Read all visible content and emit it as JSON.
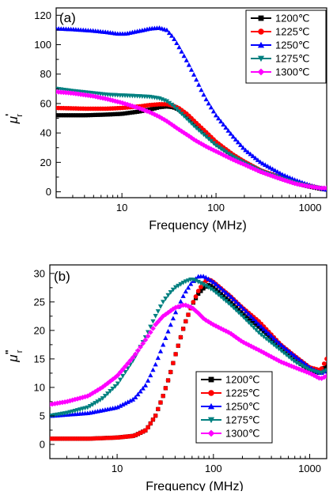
{
  "chart_data": [
    {
      "type": "scatter",
      "panel_label": "(a)",
      "xlabel": "Frequency (MHz)",
      "ylabel": {
        "base": "μ",
        "prime": "'",
        "sub": "r"
      },
      "x_scale": "log",
      "xlim": [
        2,
        1500
      ],
      "ylim": [
        -4,
        125
      ],
      "x_ticks": [
        10,
        100,
        1000
      ],
      "x_tick_labels": [
        "10",
        "100",
        "1000"
      ],
      "y_ticks": [
        0,
        20,
        40,
        60,
        80,
        100,
        120
      ],
      "y_tick_labels": [
        "0",
        "20",
        "40",
        "60",
        "80",
        "100",
        "120"
      ],
      "legend_position": "top-right",
      "series": [
        {
          "name": "1200℃",
          "color": "#000000",
          "marker": "square",
          "x": [
            2,
            4,
            7,
            10,
            15,
            20,
            25,
            30,
            35,
            40,
            50,
            60,
            80,
            100,
            150,
            200,
            300,
            500,
            700,
            1000,
            1300,
            1500
          ],
          "y": [
            52,
            52,
            52.5,
            53,
            54.5,
            56,
            57.5,
            58,
            57.5,
            56,
            51.5,
            46.5,
            39,
            33,
            25,
            20,
            14,
            9,
            6,
            3.5,
            2,
            1.5
          ]
        },
        {
          "name": "1225℃",
          "color": "#ff0000",
          "marker": "circle",
          "x": [
            2,
            4,
            7,
            10,
            15,
            20,
            25,
            30,
            35,
            40,
            50,
            60,
            80,
            100,
            150,
            200,
            300,
            500,
            700,
            1000,
            1300,
            1500
          ],
          "y": [
            57,
            56.5,
            56.5,
            57,
            58,
            59,
            59.5,
            59.5,
            58.5,
            57,
            52.5,
            47.5,
            40,
            34,
            25.5,
            20.5,
            14.5,
            9.5,
            6.5,
            4,
            2.5,
            2
          ]
        },
        {
          "name": "1250℃",
          "color": "#0000ff",
          "marker": "triangle-up",
          "x": [
            2,
            3,
            5,
            7,
            9,
            11,
            13,
            17,
            20,
            25,
            30,
            35,
            40,
            50,
            60,
            70,
            80,
            100,
            150,
            200,
            300,
            500,
            700,
            1000,
            1300,
            1500
          ],
          "y": [
            111,
            110.5,
            109.5,
            108.5,
            107.5,
            107.5,
            108.5,
            110,
            111,
            111.5,
            110,
            105,
            99,
            88,
            78,
            69,
            62,
            52,
            38,
            29,
            20,
            12,
            8,
            4.5,
            2.5,
            1.5
          ]
        },
        {
          "name": "1275℃",
          "color": "#008080",
          "marker": "triangle-down",
          "x": [
            2,
            3,
            5,
            7,
            10,
            15,
            20,
            25,
            30,
            35,
            40,
            50,
            60,
            80,
            100,
            150,
            200,
            300,
            500,
            700,
            1000,
            1300,
            1500
          ],
          "y": [
            70,
            68.5,
            67,
            66,
            65.5,
            65,
            64.5,
            63.5,
            61.5,
            58.5,
            55,
            49,
            44,
            37,
            31.5,
            24,
            19.5,
            14,
            9,
            6,
            3.5,
            2.5,
            2
          ]
        },
        {
          "name": "1300℃",
          "color": "#ff00ff",
          "marker": "diamond",
          "x": [
            2,
            3,
            5,
            7,
            10,
            15,
            20,
            25,
            30,
            40,
            50,
            60,
            80,
            100,
            150,
            200,
            300,
            500,
            700,
            1000,
            1300,
            1500
          ],
          "y": [
            68,
            67,
            65,
            63,
            60.5,
            57,
            54,
            51,
            48,
            42.5,
            38.5,
            35,
            30.5,
            27.5,
            22,
            18.5,
            13.5,
            8.5,
            5.5,
            3.5,
            2.5,
            2.5
          ]
        }
      ]
    },
    {
      "type": "scatter",
      "panel_label": "(b)",
      "xlabel": "Frequency (MHz)",
      "ylabel": {
        "base": "μ",
        "prime": "\"",
        "sub": "r"
      },
      "x_scale": "log",
      "xlim": [
        2,
        1500
      ],
      "ylim": [
        -2.5,
        31.5
      ],
      "x_ticks": [
        10,
        100,
        1000
      ],
      "x_tick_labels": [
        "10",
        "100",
        "1000"
      ],
      "y_ticks": [
        0,
        5,
        10,
        15,
        20,
        25,
        30
      ],
      "y_tick_labels": [
        "0",
        "5",
        "10",
        "15",
        "20",
        "25",
        "30"
      ],
      "legend_position": "bottom-right",
      "series": [
        {
          "name": "1200℃",
          "color": "#000000",
          "marker": "square",
          "x": [
            2,
            5,
            10,
            15,
            20,
            25,
            30,
            35,
            40,
            50,
            60,
            70,
            80,
            90,
            100,
            150,
            200,
            300,
            500,
            700,
            1000,
            1300,
            1500
          ],
          "y": [
            1,
            1,
            1.2,
            1.5,
            2.5,
            5,
            8.5,
            12,
            15.5,
            21,
            24.5,
            26.5,
            27.5,
            28,
            27.5,
            25,
            23,
            20.5,
            17,
            15,
            13,
            12.5,
            14
          ]
        },
        {
          "name": "1225℃",
          "color": "#ff0000",
          "marker": "circle",
          "x": [
            2,
            5,
            10,
            15,
            20,
            25,
            30,
            35,
            40,
            50,
            60,
            70,
            80,
            90,
            100,
            150,
            200,
            300,
            500,
            700,
            1000,
            1300,
            1500
          ],
          "y": [
            1,
            1,
            1.2,
            1.5,
            2.5,
            5,
            8.5,
            12,
            15.5,
            21,
            24.5,
            27,
            28.5,
            29,
            28.5,
            26,
            24,
            21.5,
            17.5,
            15.5,
            13.5,
            13,
            15
          ]
        },
        {
          "name": "1250℃",
          "color": "#0000ff",
          "marker": "triangle-up",
          "x": [
            2,
            5,
            10,
            15,
            20,
            25,
            30,
            35,
            40,
            50,
            60,
            70,
            80,
            100,
            150,
            200,
            300,
            500,
            700,
            1000,
            1300,
            1500
          ],
          "y": [
            5,
            5.5,
            6.5,
            8,
            10.5,
            14,
            17.5,
            20.5,
            23,
            26.5,
            28.5,
            29.5,
            29.5,
            28.5,
            26,
            24,
            21,
            17.5,
            15.5,
            13.5,
            12.5,
            13
          ]
        },
        {
          "name": "1275℃",
          "color": "#008080",
          "marker": "triangle-down",
          "x": [
            2,
            3,
            5,
            7,
            10,
            15,
            20,
            25,
            30,
            35,
            40,
            50,
            60,
            70,
            80,
            100,
            150,
            200,
            300,
            500,
            700,
            1000,
            1300,
            1500
          ],
          "y": [
            5,
            5.5,
            6.5,
            8,
            10.5,
            15,
            19,
            22.5,
            25,
            26.5,
            27.5,
            28.5,
            29,
            28.5,
            28,
            27,
            24.5,
            22.5,
            19.5,
            16.5,
            14.5,
            13,
            12.5,
            13
          ]
        },
        {
          "name": "1300℃",
          "color": "#ff00ff",
          "marker": "diamond",
          "x": [
            2,
            3,
            5,
            7,
            10,
            15,
            20,
            25,
            30,
            40,
            50,
            60,
            70,
            80,
            100,
            150,
            200,
            300,
            500,
            700,
            1000,
            1300,
            1500
          ],
          "y": [
            7,
            7.5,
            8.5,
            10,
            12,
            15.5,
            18.5,
            21,
            22.5,
            24,
            24.5,
            24,
            23,
            22,
            21,
            19.5,
            18,
            16.5,
            14.5,
            13.5,
            12.5,
            11.5,
            12
          ]
        }
      ]
    }
  ]
}
